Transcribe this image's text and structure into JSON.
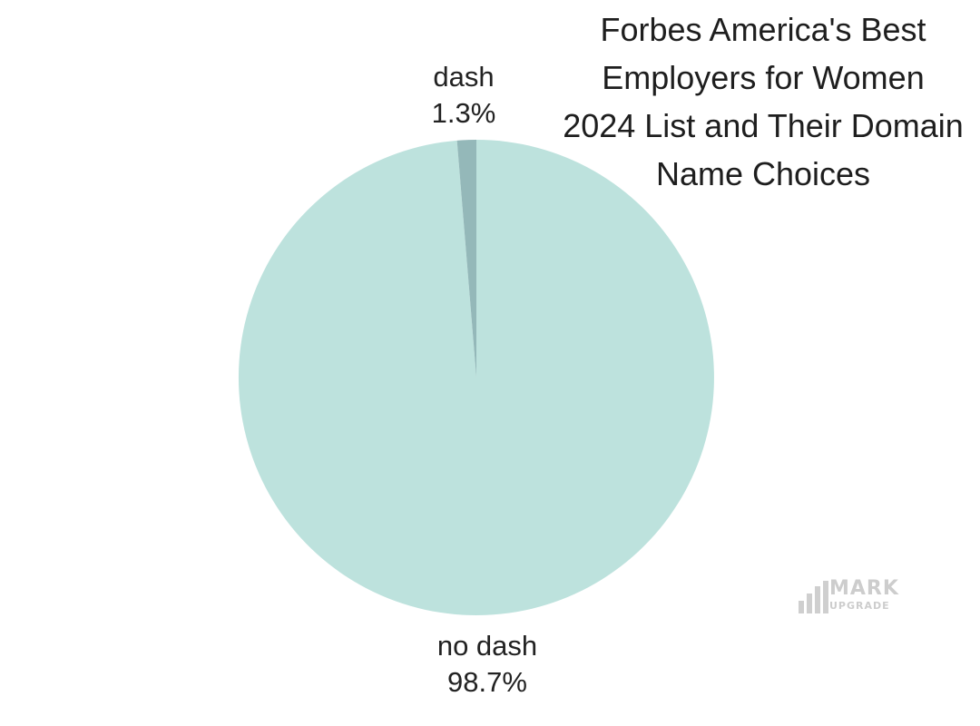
{
  "chart_data": {
    "type": "pie",
    "title_lines": [
      "Forbes America's Best",
      "Employers for Women",
      "2024 List and Their Domain",
      "Name Choices"
    ],
    "slices": [
      {
        "label": "no dash",
        "value": 98.7,
        "value_label": "98.7%",
        "color": "#bde2dd"
      },
      {
        "label": "dash",
        "value": 1.3,
        "value_label": "1.3%",
        "color": "#94b8b9"
      }
    ],
    "legend": "none",
    "grid": false
  },
  "watermark": {
    "brand_top": "MARK",
    "brand_bottom": "UPGRADE",
    "color": "#cdcdcd"
  }
}
